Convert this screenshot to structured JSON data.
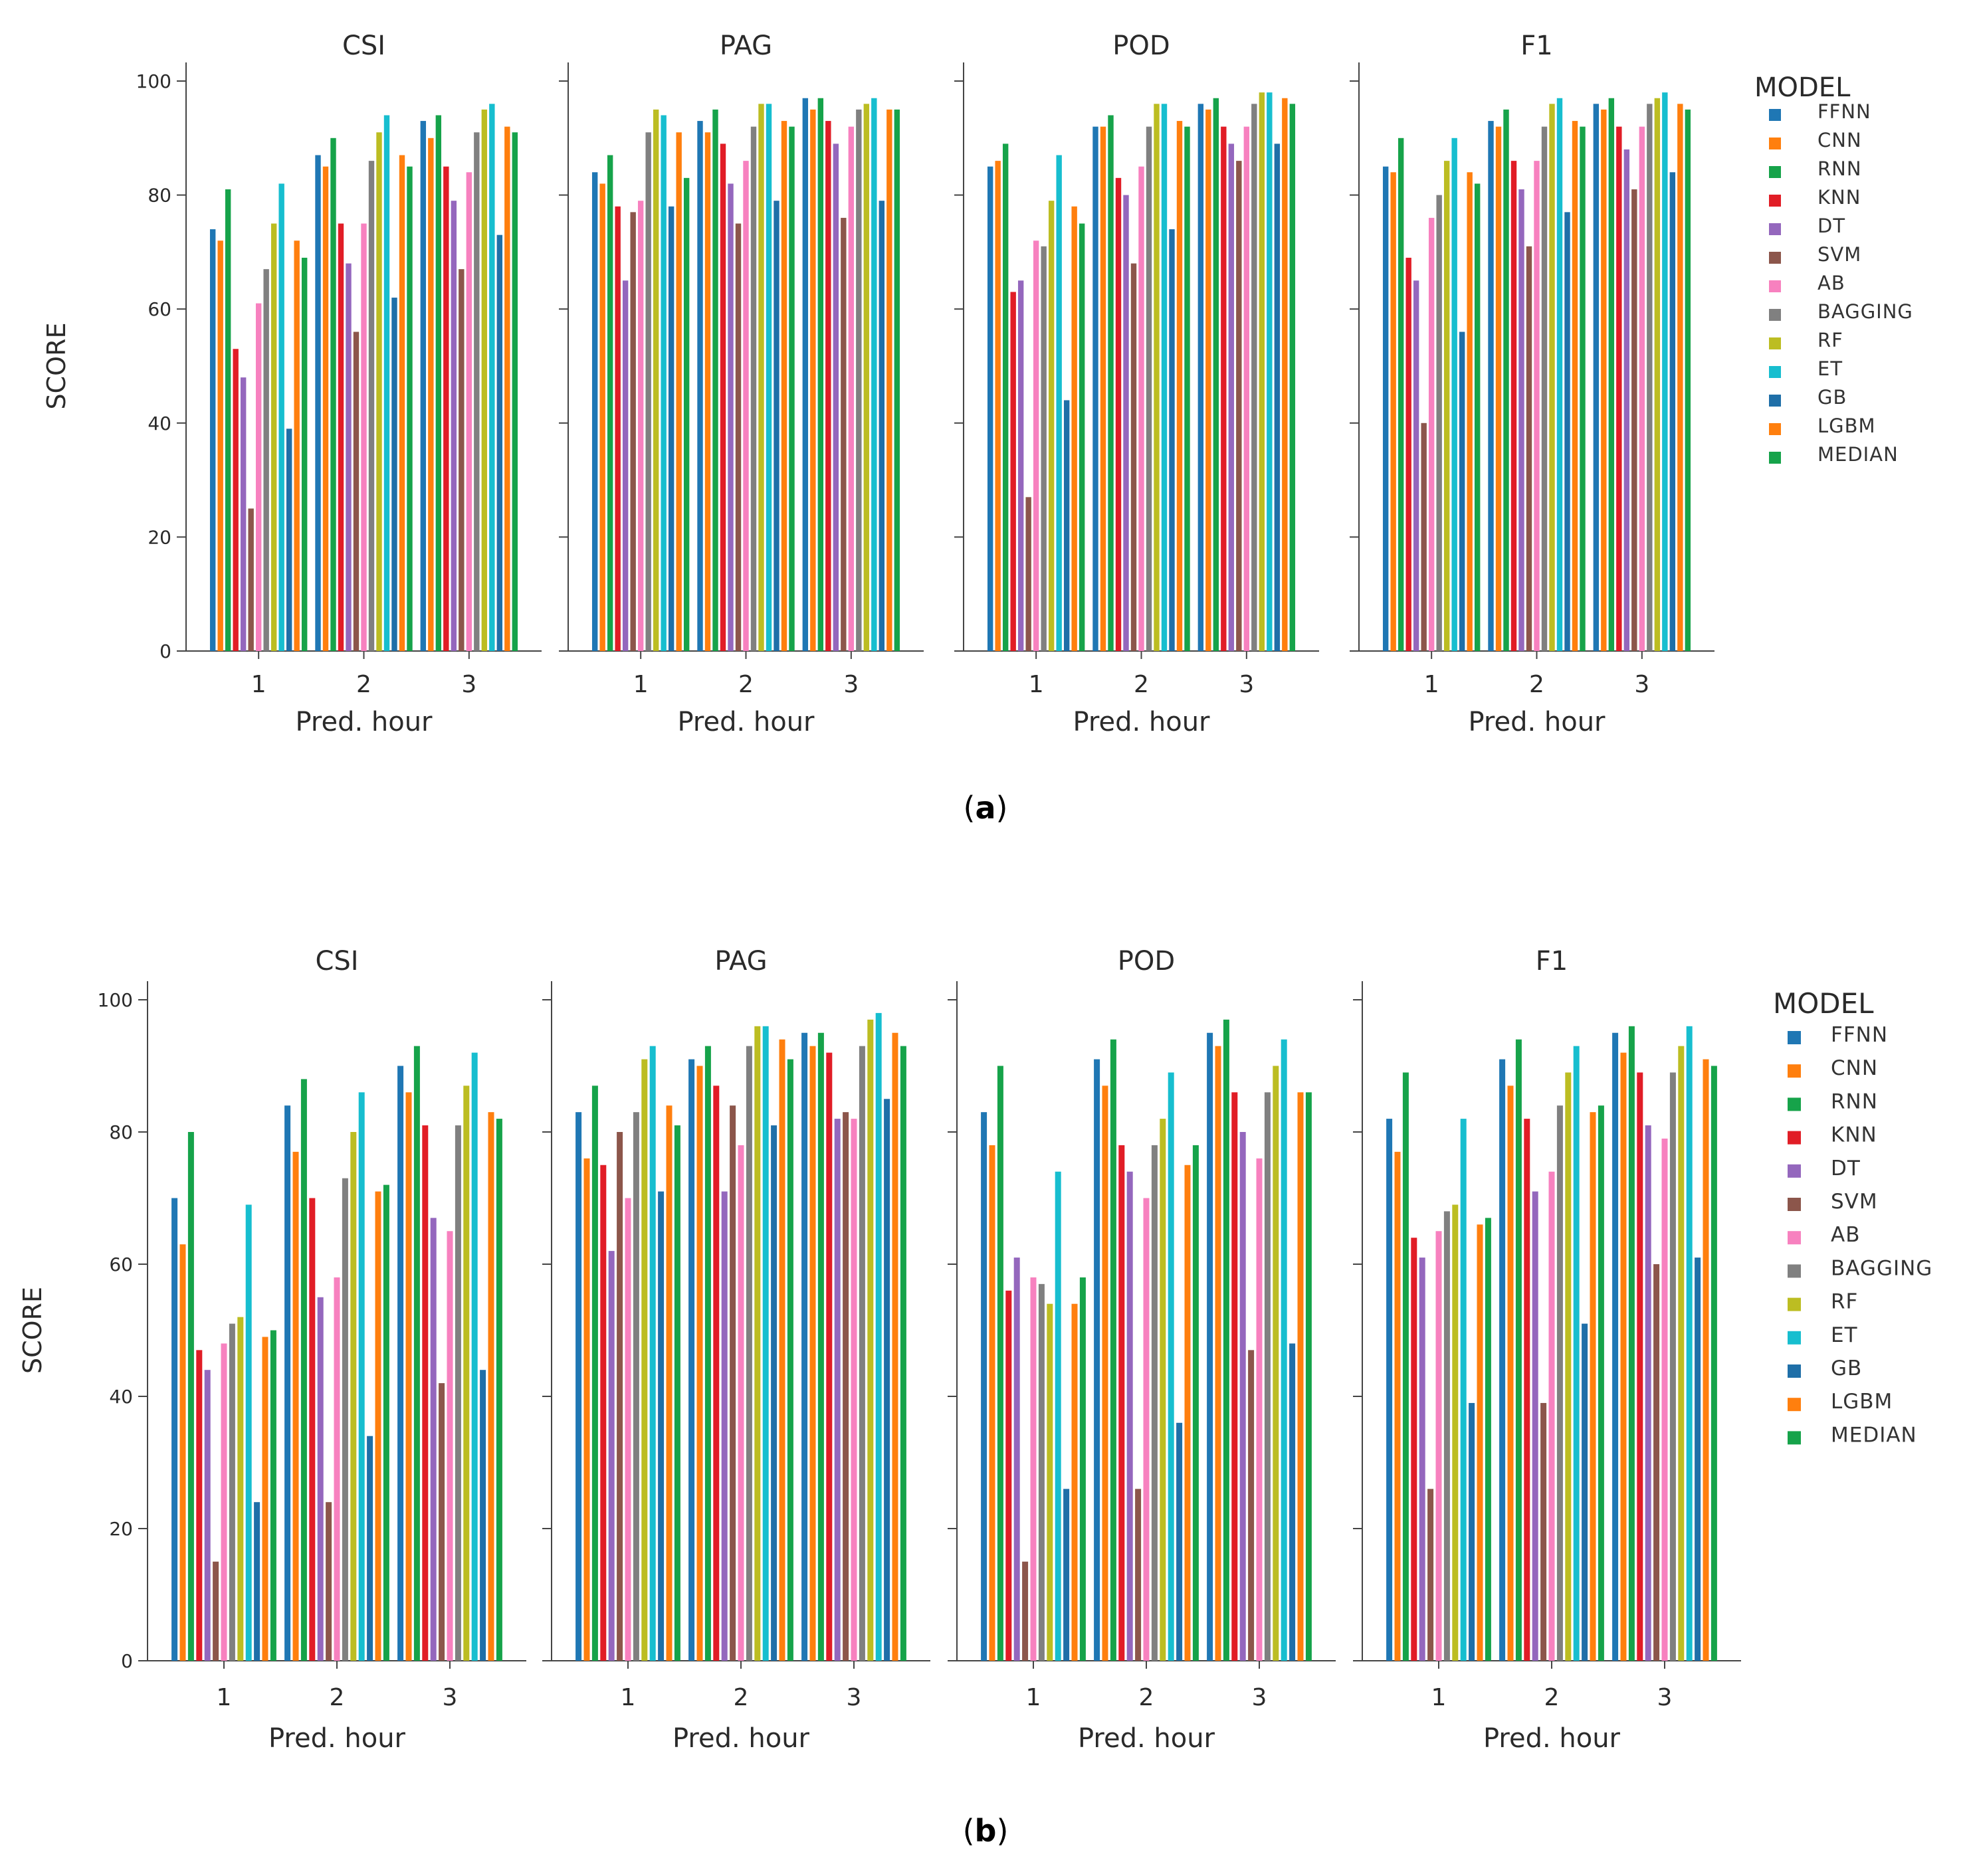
{
  "chart_data": [
    {
      "type": "bar",
      "panel_label": "a",
      "ylabel": "SCORE",
      "ylim": [
        0,
        100
      ],
      "yticks": [
        0,
        20,
        40,
        60,
        80,
        100
      ],
      "grid": false,
      "legend_title": "MODEL",
      "legend_position": "right",
      "models": [
        "FFNN",
        "CNN",
        "RNN",
        "KNN",
        "DT",
        "SVM",
        "AB",
        "BAGGING",
        "RF",
        "ET",
        "GB",
        "LGBM",
        "MEDIAN"
      ],
      "subplots": [
        {
          "title": "CSI",
          "xlabel": "Pred. hour",
          "categories": [
            "1",
            "2",
            "3"
          ],
          "values": [
            [
              74,
              72,
              81,
              53,
              48,
              25,
              61,
              67,
              75,
              82,
              39,
              72,
              69
            ],
            [
              87,
              85,
              90,
              75,
              68,
              56,
              75,
              86,
              91,
              94,
              62,
              87,
              85
            ],
            [
              93,
              90,
              94,
              85,
              79,
              67,
              84,
              91,
              95,
              96,
              73,
              92,
              91
            ]
          ]
        },
        {
          "title": "PAG",
          "xlabel": "Pred. hour",
          "categories": [
            "1",
            "2",
            "3"
          ],
          "values": [
            [
              84,
              82,
              87,
              78,
              65,
              77,
              79,
              91,
              95,
              94,
              78,
              91,
              83
            ],
            [
              93,
              91,
              95,
              89,
              82,
              75,
              86,
              92,
              96,
              96,
              79,
              93,
              92
            ],
            [
              97,
              95,
              97,
              93,
              89,
              76,
              92,
              95,
              96,
              97,
              79,
              95,
              95
            ]
          ]
        },
        {
          "title": "POD",
          "xlabel": "Pred. hour",
          "categories": [
            "1",
            "2",
            "3"
          ],
          "values": [
            [
              85,
              86,
              89,
              63,
              65,
              27,
              72,
              71,
              79,
              87,
              44,
              78,
              75
            ],
            [
              92,
              92,
              94,
              83,
              80,
              68,
              85,
              92,
              96,
              96,
              74,
              93,
              92
            ],
            [
              96,
              95,
              97,
              92,
              89,
              86,
              92,
              96,
              98,
              98,
              89,
              97,
              96
            ]
          ]
        },
        {
          "title": "F1",
          "xlabel": "Pred. hour",
          "categories": [
            "1",
            "2",
            "3"
          ],
          "values": [
            [
              85,
              84,
              90,
              69,
              65,
              40,
              76,
              80,
              86,
              90,
              56,
              84,
              82
            ],
            [
              93,
              92,
              95,
              86,
              81,
              71,
              86,
              92,
              96,
              97,
              77,
              93,
              92
            ],
            [
              96,
              95,
              97,
              92,
              88,
              81,
              92,
              96,
              97,
              98,
              84,
              96,
              95
            ]
          ]
        }
      ]
    },
    {
      "type": "bar",
      "panel_label": "b",
      "ylabel": "SCORE",
      "ylim": [
        0,
        100
      ],
      "yticks": [
        0,
        20,
        40,
        60,
        80,
        100
      ],
      "grid": false,
      "legend_title": "MODEL",
      "legend_position": "right",
      "models": [
        "FFNN",
        "CNN",
        "RNN",
        "KNN",
        "DT",
        "SVM",
        "AB",
        "BAGGING",
        "RF",
        "ET",
        "GB",
        "LGBM",
        "MEDIAN"
      ],
      "subplots": [
        {
          "title": "CSI",
          "xlabel": "Pred. hour",
          "categories": [
            "1",
            "2",
            "3"
          ],
          "values": [
            [
              70,
              63,
              80,
              47,
              44,
              15,
              48,
              51,
              52,
              69,
              24,
              49,
              50
            ],
            [
              84,
              77,
              88,
              70,
              55,
              24,
              58,
              73,
              80,
              86,
              34,
              71,
              72
            ],
            [
              90,
              86,
              93,
              81,
              67,
              42,
              65,
              81,
              87,
              92,
              44,
              83,
              82
            ]
          ]
        },
        {
          "title": "PAG",
          "xlabel": "Pred. hour",
          "categories": [
            "1",
            "2",
            "3"
          ],
          "values": [
            [
              83,
              76,
              87,
              75,
              62,
              80,
              70,
              83,
              91,
              93,
              71,
              84,
              81
            ],
            [
              91,
              90,
              93,
              87,
              71,
              84,
              78,
              93,
              96,
              96,
              81,
              94,
              91
            ],
            [
              95,
              93,
              95,
              92,
              82,
              83,
              82,
              93,
              97,
              98,
              85,
              95,
              93
            ]
          ]
        },
        {
          "title": "POD",
          "xlabel": "Pred. hour",
          "categories": [
            "1",
            "2",
            "3"
          ],
          "values": [
            [
              83,
              78,
              90,
              56,
              61,
              15,
              58,
              57,
              54,
              74,
              26,
              54,
              58
            ],
            [
              91,
              87,
              94,
              78,
              74,
              26,
              70,
              78,
              82,
              89,
              36,
              75,
              78
            ],
            [
              95,
              93,
              97,
              86,
              80,
              47,
              76,
              86,
              90,
              94,
              48,
              86,
              86
            ]
          ]
        },
        {
          "title": "F1",
          "xlabel": "Pred. hour",
          "categories": [
            "1",
            "2",
            "3"
          ],
          "values": [
            [
              82,
              77,
              89,
              64,
              61,
              26,
              65,
              68,
              69,
              82,
              39,
              66,
              67
            ],
            [
              91,
              87,
              94,
              82,
              71,
              39,
              74,
              84,
              89,
              93,
              51,
              83,
              84
            ],
            [
              95,
              92,
              96,
              89,
              81,
              60,
              79,
              89,
              93,
              96,
              61,
              91,
              90
            ]
          ]
        }
      ]
    }
  ],
  "palette": {
    "FFNN": "#1f77b4",
    "CNN": "#ff7f0e",
    "RNN": "#16a34a",
    "KNN": "#e11d26",
    "DT": "#9467bd",
    "SVM": "#8c564b",
    "AB": "#f781bf",
    "BAGGING": "#808080",
    "RF": "#bcbd22",
    "ET": "#17becf",
    "GB": "#1f6fa8",
    "LGBM": "#ff7f0e",
    "MEDIAN": "#16a34a"
  }
}
